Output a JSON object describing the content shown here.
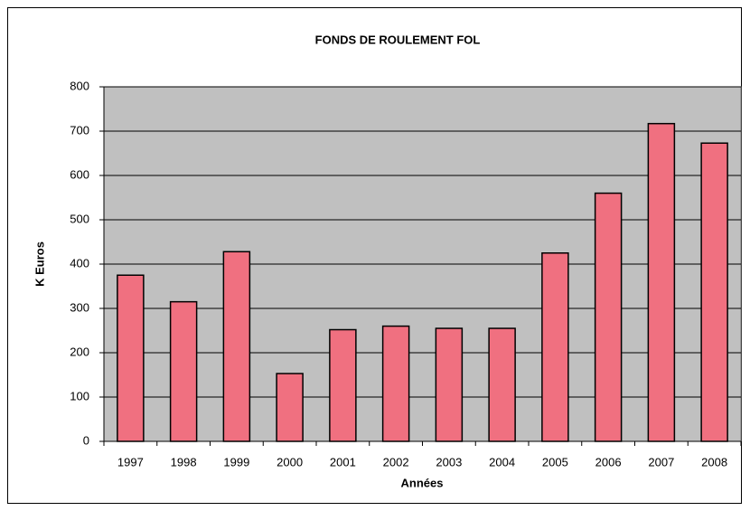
{
  "chart_data": {
    "type": "bar",
    "title": "FONDS DE ROULEMENT FOL",
    "x_label": "Années",
    "y_label": "K Euros",
    "categories": [
      "1997",
      "1998",
      "1999",
      "2000",
      "2001",
      "2002",
      "2003",
      "2004",
      "2005",
      "2006",
      "2007",
      "2008"
    ],
    "values": [
      375,
      315,
      428,
      153,
      252,
      260,
      255,
      255,
      425,
      560,
      717,
      673
    ],
    "color": "#f07080",
    "ylim": [
      0,
      800
    ],
    "yticks": [
      0,
      100,
      200,
      300,
      400,
      500,
      600,
      700,
      800
    ],
    "grid": true
  }
}
